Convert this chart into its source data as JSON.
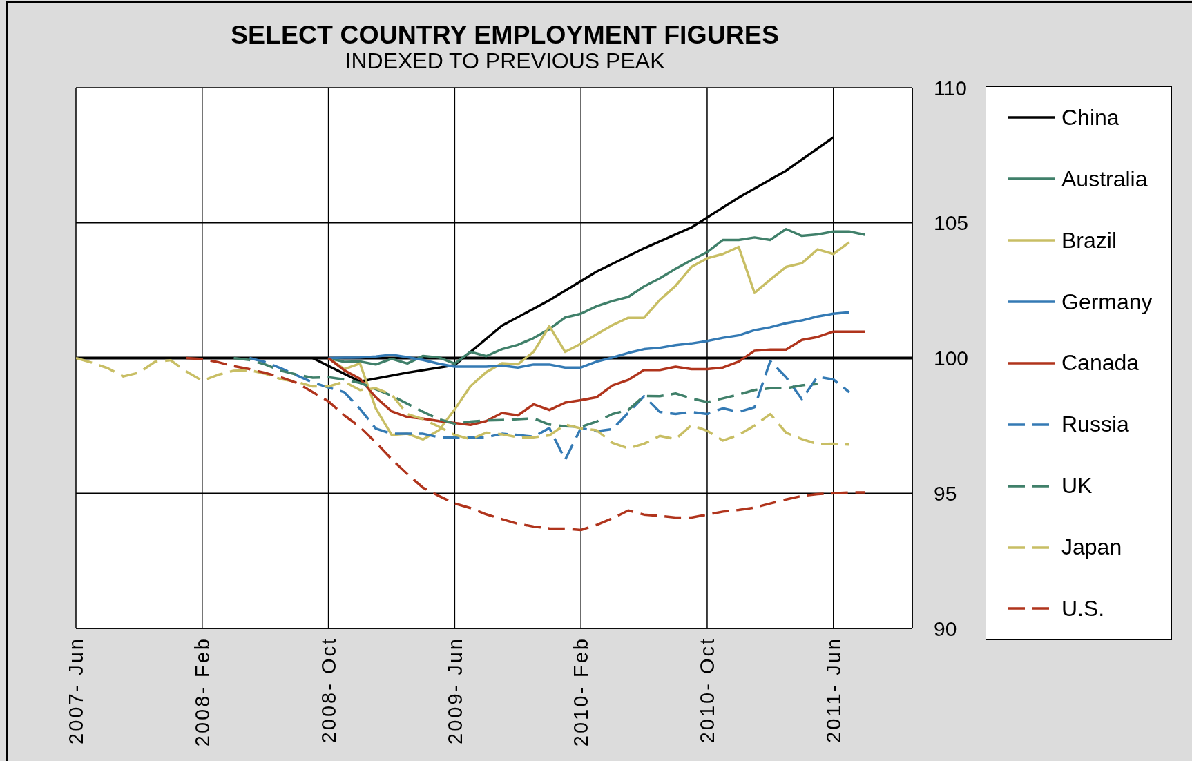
{
  "chart_data": {
    "type": "line",
    "title": "SELECT COUNTRY EMPLOYMENT FIGURES",
    "subtitle": "INDEXED TO PREVIOUS PEAK",
    "x": [
      "2007-06",
      "2007-07",
      "2007-08",
      "2007-09",
      "2007-10",
      "2007-11",
      "2007-12",
      "2008-01",
      "2008-02",
      "2008-03",
      "2008-04",
      "2008-05",
      "2008-06",
      "2008-07",
      "2008-08",
      "2008-09",
      "2008-10",
      "2008-11",
      "2008-12",
      "2009-01",
      "2009-02",
      "2009-03",
      "2009-04",
      "2009-05",
      "2009-06",
      "2009-07",
      "2009-08",
      "2009-09",
      "2009-10",
      "2009-11",
      "2009-12",
      "2010-01",
      "2010-02",
      "2010-03",
      "2010-04",
      "2010-05",
      "2010-06",
      "2010-07",
      "2010-08",
      "2010-09",
      "2010-10",
      "2010-11",
      "2010-12",
      "2011-01",
      "2011-02",
      "2011-03",
      "2011-04",
      "2011-05",
      "2011-06",
      "2011-07",
      "2011-08"
    ],
    "xlim": [
      "2007-06",
      "2011-11"
    ],
    "xticks": [
      {
        "value": "2007-06",
        "label": "2007- Jun"
      },
      {
        "value": "2008-02",
        "label": "2008- Feb"
      },
      {
        "value": "2008-10",
        "label": "2008- Oct"
      },
      {
        "value": "2009-06",
        "label": "2009- Jun"
      },
      {
        "value": "2010-02",
        "label": "2010- Feb"
      },
      {
        "value": "2010-10",
        "label": "2010- Oct"
      },
      {
        "value": "2011-06",
        "label": "2011- Jun"
      }
    ],
    "ylim": [
      90,
      110
    ],
    "yticks": [
      90,
      95,
      100,
      105,
      110
    ],
    "grid": true,
    "legend": "right",
    "ref_lines": [
      {
        "axis": "y",
        "value": 100,
        "color": "#000000"
      }
    ],
    "series": [
      {
        "name": "China",
        "color": "#000000",
        "line_style": "solid",
        "x": [
          "2008-09",
          "2008-12",
          "2009-03",
          "2009-06",
          "2009-09",
          "2009-12",
          "2010-03",
          "2010-06",
          "2010-09",
          "2010-12",
          "2011-03",
          "2011-06"
        ],
        "values": [
          100,
          99.13,
          99.46,
          99.74,
          101.2,
          102.14,
          103.2,
          104.06,
          104.83,
          105.94,
          106.93,
          108.16
        ]
      },
      {
        "name": "Australia",
        "color": "#40806a",
        "line_style": "solid",
        "values": [
          null,
          null,
          null,
          null,
          null,
          null,
          null,
          null,
          null,
          null,
          null,
          null,
          null,
          null,
          null,
          null,
          100,
          99.86,
          99.87,
          99.76,
          99.97,
          99.8,
          100.08,
          100.02,
          99.79,
          100.23,
          100.07,
          100.33,
          100.49,
          100.74,
          101.07,
          101.5,
          101.64,
          101.92,
          102.11,
          102.26,
          102.65,
          102.95,
          103.3,
          103.62,
          103.92,
          104.37,
          104.37,
          104.46,
          104.37,
          104.77,
          104.52,
          104.57,
          104.68,
          104.68,
          104.56
        ]
      },
      {
        "name": "Brazil",
        "color": "#c8be64",
        "line_style": "solid",
        "values": [
          null,
          null,
          null,
          null,
          null,
          null,
          null,
          null,
          null,
          null,
          null,
          null,
          null,
          null,
          null,
          null,
          100,
          99.59,
          99.8,
          98.14,
          97.16,
          97.2,
          96.99,
          97.33,
          98.1,
          98.96,
          99.48,
          99.81,
          99.77,
          100.23,
          101.18,
          100.23,
          100.53,
          100.88,
          101.22,
          101.49,
          101.49,
          102.15,
          102.67,
          103.37,
          103.69,
          103.85,
          104.11,
          102.41,
          102.9,
          103.37,
          103.51,
          104.02,
          103.85,
          104.28,
          null
        ]
      },
      {
        "name": "Germany",
        "color": "#347ab4",
        "line_style": "solid",
        "values": [
          null,
          null,
          null,
          null,
          null,
          null,
          null,
          null,
          null,
          null,
          null,
          null,
          null,
          null,
          null,
          null,
          100,
          100.01,
          100.02,
          100.06,
          100.12,
          100.03,
          99.93,
          99.79,
          99.68,
          99.68,
          99.68,
          99.72,
          99.65,
          99.76,
          99.76,
          99.65,
          99.65,
          99.87,
          100.02,
          100.19,
          100.33,
          100.38,
          100.48,
          100.54,
          100.63,
          100.75,
          100.84,
          101.03,
          101.14,
          101.29,
          101.39,
          101.54,
          101.64,
          101.69,
          null
        ]
      },
      {
        "name": "Canada",
        "color": "#b0341c",
        "line_style": "solid",
        "values": [
          null,
          null,
          null,
          null,
          null,
          null,
          null,
          null,
          null,
          null,
          null,
          null,
          null,
          null,
          null,
          null,
          100,
          99.55,
          99.23,
          98.55,
          98.03,
          97.82,
          97.76,
          97.67,
          97.6,
          97.53,
          97.67,
          97.97,
          97.88,
          98.29,
          98.08,
          98.35,
          98.44,
          98.55,
          98.99,
          99.19,
          99.56,
          99.56,
          99.68,
          99.59,
          99.59,
          99.65,
          99.87,
          100.27,
          100.31,
          100.31,
          100.67,
          100.78,
          100.98,
          100.98,
          100.98
        ]
      },
      {
        "name": "Russia",
        "color": "#347ab4",
        "line_style": "dashed",
        "values": [
          null,
          null,
          null,
          null,
          null,
          null,
          null,
          null,
          null,
          null,
          null,
          100,
          99.85,
          99.62,
          99.36,
          99.1,
          98.91,
          98.74,
          98.12,
          97.39,
          97.2,
          97.2,
          97.2,
          97.07,
          97.07,
          97.07,
          97.07,
          97.2,
          97.16,
          97.09,
          97.41,
          96.24,
          97.41,
          97.29,
          97.37,
          97.98,
          98.59,
          98.01,
          97.93,
          98.01,
          97.93,
          98.14,
          98.01,
          98.18,
          99.89,
          99.29,
          98.48,
          99.31,
          99.21,
          98.74,
          null
        ]
      },
      {
        "name": "UK",
        "color": "#40806a",
        "line_style": "dashed",
        "values": [
          null,
          null,
          null,
          null,
          null,
          null,
          null,
          null,
          null,
          null,
          100,
          99.93,
          99.76,
          99.53,
          99.39,
          99.27,
          99.29,
          99.21,
          99.08,
          98.85,
          98.61,
          98.31,
          98.01,
          97.74,
          97.57,
          97.65,
          97.69,
          97.71,
          97.74,
          97.77,
          97.54,
          97.48,
          97.46,
          97.65,
          97.93,
          98.08,
          98.6,
          98.59,
          98.69,
          98.51,
          98.37,
          98.51,
          98.65,
          98.82,
          98.88,
          98.88,
          98.99,
          99.04,
          null,
          null,
          null
        ]
      },
      {
        "name": "Japan",
        "color": "#c8be64",
        "line_style": "dashed",
        "values": [
          100,
          99.83,
          99.63,
          99.32,
          99.46,
          99.86,
          99.92,
          99.5,
          99.16,
          99.38,
          99.53,
          99.55,
          99.42,
          99.22,
          99.12,
          98.95,
          98.95,
          99.12,
          98.82,
          98.88,
          98.65,
          97.93,
          97.74,
          97.46,
          97.16,
          97.0,
          97.24,
          97.18,
          97.07,
          97.07,
          97.14,
          97.54,
          97.4,
          97.33,
          96.86,
          96.66,
          96.83,
          97.12,
          97.0,
          97.52,
          97.31,
          96.95,
          97.16,
          97.5,
          97.93,
          97.24,
          97.0,
          96.82,
          96.83,
          96.8,
          null
        ]
      },
      {
        "name": "U.S.",
        "color": "#b0341c",
        "line_style": "dashed",
        "values": [
          null,
          null,
          null,
          null,
          null,
          null,
          null,
          100,
          99.96,
          99.85,
          99.7,
          99.59,
          99.45,
          99.29,
          99.08,
          98.74,
          98.4,
          97.88,
          97.45,
          96.88,
          96.26,
          95.71,
          95.2,
          94.9,
          94.62,
          94.45,
          94.22,
          94.04,
          93.87,
          93.77,
          93.7,
          93.69,
          93.64,
          93.83,
          94.07,
          94.36,
          94.21,
          94.16,
          94.1,
          94.1,
          94.21,
          94.32,
          94.38,
          94.47,
          94.62,
          94.77,
          94.9,
          94.97,
          95.0,
          95.03,
          95.03
        ]
      }
    ]
  }
}
